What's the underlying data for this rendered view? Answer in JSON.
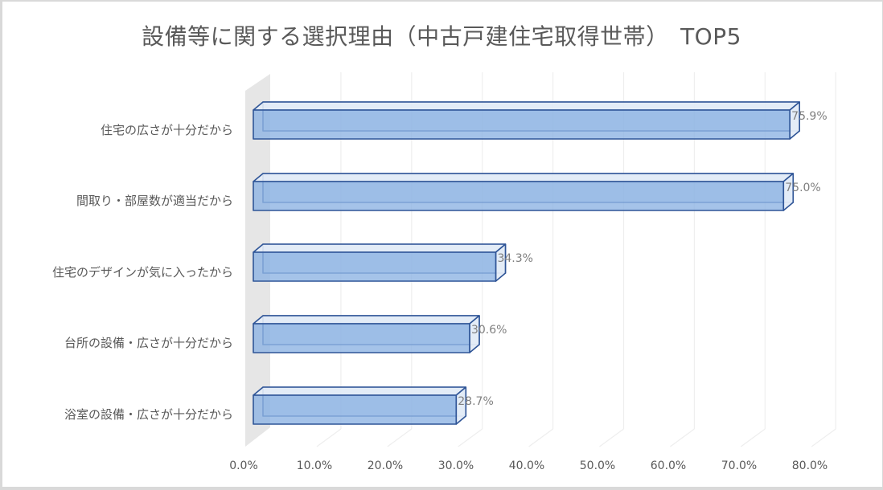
{
  "chart_data": {
    "type": "bar",
    "orientation": "horizontal",
    "style": "3d-clustered-bar",
    "title": "設備等に関する選択理由（中古戸建住宅取得世帯）　TOP5",
    "categories": [
      "住宅の広さが十分だから",
      "間取り・部屋数が適当だから",
      "住宅のデザインが気に入ったから",
      "台所の設備・広さが十分だから",
      "浴室の設備・広さが十分だから"
    ],
    "values": [
      75.9,
      75.0,
      34.3,
      30.6,
      28.7
    ],
    "data_labels": [
      "75.9%",
      "75.0%",
      "34.3%",
      "30.6%",
      "28.7%"
    ],
    "xlabel": "",
    "ylabel": "",
    "xlim": [
      0,
      80
    ],
    "x_ticks": [
      "0.0%",
      "10.0%",
      "20.0%",
      "30.0%",
      "40.0%",
      "50.0%",
      "60.0%",
      "70.0%",
      "80.0%"
    ],
    "grid": true,
    "legend": "none",
    "colors": {
      "bar_fill": "#8fb4e3",
      "bar_edge": "#2f5597",
      "bar_top": "#e4ecf7",
      "side_wall": "#e6e6e6",
      "gridline": "#eeeeee",
      "text": "#595959",
      "label": "#7f7f7f"
    }
  }
}
